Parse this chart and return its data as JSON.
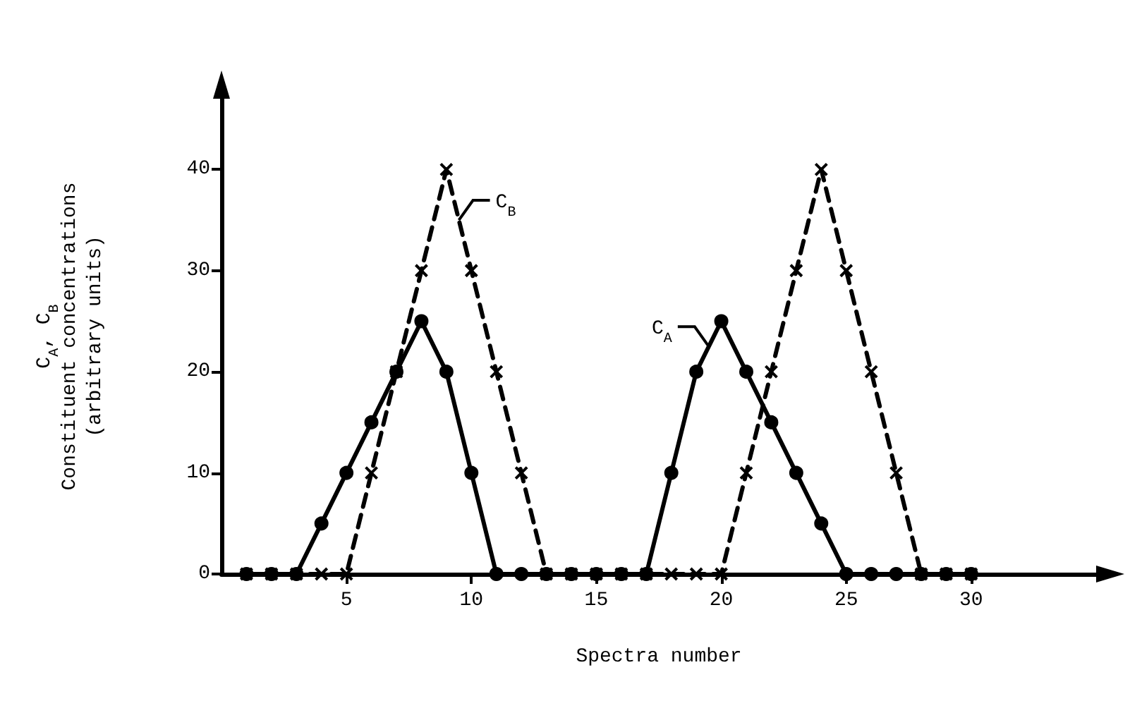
{
  "chart_data": {
    "type": "line",
    "xlabel": "Spectra number",
    "ylabel": "C$_{A}$, C$_{B}$\nConstituent concentrations\n(arbitrary units)",
    "xlim": [
      0,
      35
    ],
    "xticks": [
      5,
      10,
      15,
      20,
      25,
      30
    ],
    "ylim": [
      0,
      47
    ],
    "yticks": [
      0,
      10,
      20,
      30,
      40
    ],
    "grid": false,
    "annotations": [
      {
        "text": "C$_{B}$",
        "x": 9.5,
        "y": 35
      },
      {
        "text": "C$_{A}$",
        "x": 19.5,
        "y": 22.5
      }
    ],
    "series": [
      {
        "color": "#000000",
        "marker": "circle",
        "line_style": "solid",
        "x": [
          1,
          2,
          3,
          4,
          5,
          6,
          7,
          8,
          9,
          10,
          11,
          12,
          13,
          14,
          15,
          16,
          17,
          18,
          19,
          20,
          21,
          22,
          23,
          24,
          25,
          26,
          27,
          28,
          29,
          30
        ],
        "values": [
          0,
          0,
          0,
          5,
          10,
          15,
          20,
          25,
          20,
          10,
          0,
          0,
          0,
          0,
          0,
          0,
          0,
          10,
          20,
          25,
          20,
          15,
          10,
          5,
          0,
          0,
          0,
          0,
          0,
          0
        ]
      },
      {
        "color": "#000000",
        "marker": "cross",
        "line_style": "dashed",
        "x": [
          1,
          2,
          3,
          4,
          5,
          6,
          7,
          8,
          9,
          10,
          11,
          12,
          13,
          14,
          15,
          16,
          17,
          18,
          19,
          20,
          21,
          22,
          23,
          24,
          25,
          26,
          27,
          28,
          29,
          30
        ],
        "values": [
          0,
          0,
          0,
          0,
          0,
          10,
          20,
          30,
          40,
          30,
          20,
          10,
          0,
          0,
          0,
          0,
          0,
          0,
          0,
          0,
          10,
          20,
          30,
          40,
          30,
          20,
          10,
          0,
          0,
          0
        ]
      }
    ]
  }
}
